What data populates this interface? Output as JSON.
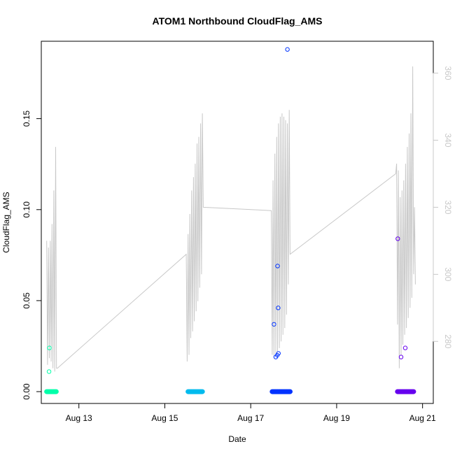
{
  "chart_data": {
    "type": "scatter",
    "title": "ATOM1 Northbound CloudFlag_AMS",
    "xlabel": "Date",
    "ylabel": "CloudFlag_AMS",
    "x_ticks": [
      {
        "date": "2023-08-13",
        "label": "Aug 13"
      },
      {
        "date": "2023-08-15",
        "label": "Aug 15"
      },
      {
        "date": "2023-08-17",
        "label": "Aug 17"
      },
      {
        "date": "2023-08-19",
        "label": "Aug 19"
      },
      {
        "date": "2023-08-21",
        "label": "Aug 21"
      }
    ],
    "xlim": [
      "2023-08-12T03:00",
      "2023-08-21T06:00"
    ],
    "ylim": [
      -0.0065,
      0.1925
    ],
    "y_ticks": [
      "0.00",
      "0.05",
      "0.10",
      "0.15"
    ],
    "y2lim": [
      261.5,
      369.5
    ],
    "y2_ticks": [
      "280",
      "300",
      "320",
      "340",
      "360"
    ],
    "series": [
      {
        "color": "#00ffaa",
        "points": [
          [
            "2023-08-12T06:00",
            0.0
          ],
          [
            "2023-08-12T06:40",
            0.0
          ],
          [
            "2023-08-12T07:20",
            0.0
          ],
          [
            "2023-08-12T08:00",
            0.0
          ],
          [
            "2023-08-12T08:40",
            0.0
          ],
          [
            "2023-08-12T09:20",
            0.0
          ],
          [
            "2023-08-12T10:00",
            0.0
          ],
          [
            "2023-08-12T10:40",
            0.0
          ],
          [
            "2023-08-12T11:20",
            0.0
          ],
          [
            "2023-08-12T07:30",
            0.024
          ],
          [
            "2023-08-12T07:20",
            0.011
          ]
        ]
      },
      {
        "color": "#00bbee",
        "points": [
          [
            "2023-08-15T13:00",
            0.0
          ],
          [
            "2023-08-15T14:00",
            0.0
          ],
          [
            "2023-08-15T15:00",
            0.0
          ],
          [
            "2023-08-15T16:00",
            0.0
          ],
          [
            "2023-08-15T17:00",
            0.0
          ],
          [
            "2023-08-15T18:00",
            0.0
          ],
          [
            "2023-08-15T19:00",
            0.0
          ],
          [
            "2023-08-15T20:00",
            0.0
          ],
          [
            "2023-08-15T21:00",
            0.0
          ]
        ]
      },
      {
        "color": "#0033ff",
        "points": [
          [
            "2023-08-17T12:00",
            0.0
          ],
          [
            "2023-08-17T13:00",
            0.0
          ],
          [
            "2023-08-17T14:00",
            0.0
          ],
          [
            "2023-08-17T15:00",
            0.0
          ],
          [
            "2023-08-17T16:00",
            0.0
          ],
          [
            "2023-08-17T17:00",
            0.0
          ],
          [
            "2023-08-17T18:00",
            0.0
          ],
          [
            "2023-08-17T19:00",
            0.0
          ],
          [
            "2023-08-17T20:00",
            0.0
          ],
          [
            "2023-08-17T21:00",
            0.0
          ],
          [
            "2023-08-17T22:00",
            0.0
          ],
          [
            "2023-08-17T13:00",
            0.037
          ],
          [
            "2023-08-17T14:00",
            0.019
          ],
          [
            "2023-08-17T14:50",
            0.02
          ],
          [
            "2023-08-17T15:30",
            0.021
          ],
          [
            "2023-08-17T15:00",
            0.069
          ],
          [
            "2023-08-17T15:20",
            0.046
          ],
          [
            "2023-08-17T20:30",
            0.188
          ]
        ]
      },
      {
        "color": "#6600ee",
        "points": [
          [
            "2023-08-20T10:00",
            0.0
          ],
          [
            "2023-08-20T11:00",
            0.0
          ],
          [
            "2023-08-20T12:00",
            0.0
          ],
          [
            "2023-08-20T13:00",
            0.0
          ],
          [
            "2023-08-20T14:00",
            0.0
          ],
          [
            "2023-08-20T15:00",
            0.0
          ],
          [
            "2023-08-20T16:00",
            0.0
          ],
          [
            "2023-08-20T17:00",
            0.0
          ],
          [
            "2023-08-20T18:00",
            0.0
          ],
          [
            "2023-08-20T19:00",
            0.0
          ],
          [
            "2023-08-20T10:10",
            0.084
          ],
          [
            "2023-08-20T12:00",
            0.019
          ],
          [
            "2023-08-20T14:20",
            0.024
          ]
        ]
      }
    ],
    "overlay_line": {
      "color": "#c8c8c8",
      "axis": "right",
      "points": [
        [
          "2023-08-12T06:00",
          310
        ],
        [
          "2023-08-12T06:30",
          273
        ],
        [
          "2023-08-12T07:00",
          308
        ],
        [
          "2023-08-12T07:30",
          275
        ],
        [
          "2023-08-12T08:00",
          310
        ],
        [
          "2023-08-12T08:30",
          274
        ],
        [
          "2023-08-12T09:00",
          315
        ],
        [
          "2023-08-12T09:30",
          272
        ],
        [
          "2023-08-12T10:00",
          325
        ],
        [
          "2023-08-12T10:30",
          271
        ],
        [
          "2023-08-12T11:00",
          338
        ],
        [
          "2023-08-12T11:30",
          272
        ],
        [
          "2023-08-12T12:00",
          272
        ],
        [
          "2023-08-15T12:00",
          306
        ],
        [
          "2023-08-15T12:30",
          274
        ],
        [
          "2023-08-15T13:00",
          312
        ],
        [
          "2023-08-15T13:30",
          276
        ],
        [
          "2023-08-15T14:00",
          318
        ],
        [
          "2023-08-15T14:30",
          281
        ],
        [
          "2023-08-15T15:00",
          325
        ],
        [
          "2023-08-15T15:30",
          283
        ],
        [
          "2023-08-15T16:00",
          329
        ],
        [
          "2023-08-15T16:30",
          286
        ],
        [
          "2023-08-15T17:00",
          333
        ],
        [
          "2023-08-15T17:30",
          289
        ],
        [
          "2023-08-15T18:00",
          339
        ],
        [
          "2023-08-15T18:30",
          292
        ],
        [
          "2023-08-15T19:00",
          341
        ],
        [
          "2023-08-15T19:30",
          296
        ],
        [
          "2023-08-15T20:00",
          345
        ],
        [
          "2023-08-15T20:30",
          300
        ],
        [
          "2023-08-15T21:00",
          348
        ],
        [
          "2023-08-15T21:30",
          320
        ],
        [
          "2023-08-17T11:30",
          319
        ],
        [
          "2023-08-17T12:00",
          276
        ],
        [
          "2023-08-17T12:30",
          328
        ],
        [
          "2023-08-17T13:00",
          275
        ],
        [
          "2023-08-17T13:30",
          336
        ],
        [
          "2023-08-17T14:00",
          276
        ],
        [
          "2023-08-17T14:30",
          341
        ],
        [
          "2023-08-17T15:00",
          277
        ],
        [
          "2023-08-17T15:30",
          345
        ],
        [
          "2023-08-17T16:00",
          278
        ],
        [
          "2023-08-17T16:30",
          347
        ],
        [
          "2023-08-17T17:00",
          280
        ],
        [
          "2023-08-17T17:30",
          348
        ],
        [
          "2023-08-17T18:00",
          282
        ],
        [
          "2023-08-17T18:30",
          347
        ],
        [
          "2023-08-17T19:00",
          284
        ],
        [
          "2023-08-17T19:30",
          346
        ],
        [
          "2023-08-17T20:00",
          288
        ],
        [
          "2023-08-17T20:30",
          345
        ],
        [
          "2023-08-17T21:00",
          297
        ],
        [
          "2023-08-17T21:30",
          349
        ],
        [
          "2023-08-17T22:00",
          306
        ],
        [
          "2023-08-20T09:00",
          330
        ],
        [
          "2023-08-20T09:30",
          333
        ],
        [
          "2023-08-20T10:00",
          285
        ],
        [
          "2023-08-20T10:30",
          331
        ],
        [
          "2023-08-20T11:00",
          272
        ],
        [
          "2023-08-20T11:30",
          323
        ],
        [
          "2023-08-20T12:00",
          276
        ],
        [
          "2023-08-20T12:30",
          325
        ],
        [
          "2023-08-20T13:00",
          279
        ],
        [
          "2023-08-20T13:30",
          328
        ],
        [
          "2023-08-20T14:00",
          282
        ],
        [
          "2023-08-20T14:30",
          333
        ],
        [
          "2023-08-20T15:00",
          284
        ],
        [
          "2023-08-20T15:30",
          338
        ],
        [
          "2023-08-20T16:00",
          287
        ],
        [
          "2023-08-20T16:30",
          342
        ],
        [
          "2023-08-20T17:00",
          290
        ],
        [
          "2023-08-20T17:30",
          348
        ],
        [
          "2023-08-20T18:00",
          293
        ],
        [
          "2023-08-20T18:30",
          362
        ],
        [
          "2023-08-20T19:00",
          300
        ],
        [
          "2023-08-20T19:30",
          320
        ],
        [
          "2023-08-20T20:00",
          297
        ]
      ]
    }
  }
}
